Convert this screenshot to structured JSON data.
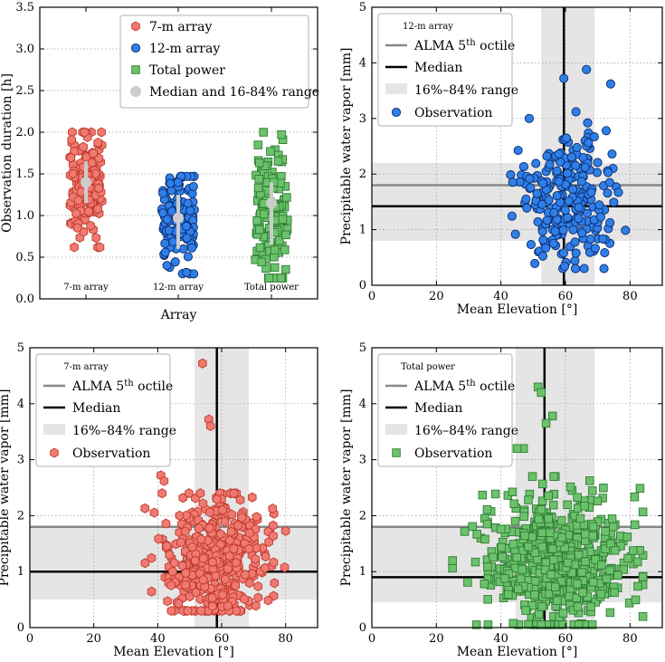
{
  "colors": {
    "red_fill": "#f07a72",
    "red_edge": "#c0392b",
    "blue_fill": "#2f7fe8",
    "blue_edge": "#0b2a6b",
    "green_fill": "#6cc26c",
    "green_edge": "#2e7d32",
    "median_marker": "#cccccc",
    "octile": "#888888",
    "band": "#e5e5e5"
  },
  "chart_data": [
    {
      "id": "panel-a",
      "type": "scatter",
      "xlabel": "Array",
      "ylabel": "Observation duration [h]",
      "ylim": [
        0,
        3.5
      ],
      "yticks": [
        "0.0",
        "0.5",
        "1.0",
        "1.5",
        "2.0",
        "2.5",
        "3.0",
        "3.5"
      ],
      "categories": [
        "7-m array",
        "12-m array",
        "Total power"
      ],
      "legend": [
        "7-m array",
        "12-m array",
        "Total power",
        "Median and 16-84% range"
      ],
      "series": [
        {
          "name": "7-m array",
          "marker": "hexagon",
          "median": 1.4,
          "range": [
            1.15,
            1.65
          ],
          "min": 0.62,
          "max": 2.0,
          "center": 1.35,
          "n": 140
        },
        {
          "name": "12-m array",
          "marker": "circle",
          "median": 0.97,
          "range": [
            0.6,
            1.25
          ],
          "min": 0.3,
          "max": 1.47,
          "center": 0.95,
          "n": 140
        },
        {
          "name": "Total power",
          "marker": "square",
          "median": 1.15,
          "range": [
            0.65,
            1.4
          ],
          "min": 0.25,
          "max": 2.0,
          "center": 1.0,
          "n": 140
        }
      ]
    },
    {
      "id": "panel-b",
      "type": "scatter",
      "title": "12-m array",
      "xlabel": "Mean Elevation [°]",
      "ylabel": "Precipitable water vapor [mm]",
      "xlim": [
        0,
        90
      ],
      "ylim": [
        0,
        5
      ],
      "xticks": [
        "0",
        "20",
        "40",
        "60",
        "80"
      ],
      "yticks": [
        "0",
        "1",
        "2",
        "3",
        "4",
        "5"
      ],
      "legend": [
        "ALMA 5th octile",
        "Median",
        "16%–84% range",
        "Observation"
      ],
      "octile": 1.8,
      "median_x": 59.5,
      "median_y": 1.42,
      "band_x": [
        52.5,
        69
      ],
      "band_y": [
        0.8,
        2.2
      ],
      "marker": "circle",
      "cloud": {
        "xmin": 43,
        "xmax": 81,
        "ymin": 0.3,
        "ymax": 3.9,
        "xmean": 60,
        "ymean": 1.5,
        "n": 230
      },
      "outliers": [
        [
          59.5,
          3.72
        ],
        [
          66.5,
          3.88
        ],
        [
          74,
          3.62
        ]
      ]
    },
    {
      "id": "panel-c",
      "type": "scatter",
      "title": "7-m array",
      "xlabel": "Mean Elevation [°]",
      "ylabel": "Precipitable water vapor [mm]",
      "xlim": [
        0,
        90
      ],
      "ylim": [
        0,
        5
      ],
      "xticks": [
        "0",
        "20",
        "40",
        "60",
        "80"
      ],
      "yticks": [
        "0",
        "1",
        "2",
        "3",
        "4",
        "5"
      ],
      "legend": [
        "ALMA 5th octile",
        "Median",
        "16%–84% range",
        "Observation"
      ],
      "octile": 1.8,
      "median_x": 58.5,
      "median_y": 1.0,
      "band_x": [
        51.5,
        68.5
      ],
      "band_y": [
        0.5,
        1.8
      ],
      "marker": "hexagon",
      "cloud": {
        "xmin": 36,
        "xmax": 80,
        "ymin": 0.3,
        "ymax": 3.0,
        "xmean": 58,
        "ymean": 1.15,
        "n": 420
      },
      "outliers": [
        [
          54,
          4.72
        ],
        [
          56,
          3.72
        ],
        [
          56.5,
          3.6
        ],
        [
          41,
          2.72
        ],
        [
          42,
          2.62
        ]
      ]
    },
    {
      "id": "panel-d",
      "type": "scatter",
      "title": "Total power",
      "xlabel": "Mean Elevation [°]",
      "ylabel": "Precipitable water vapor [mm]",
      "xlim": [
        0,
        90
      ],
      "ylim": [
        0,
        5
      ],
      "xticks": [
        "0",
        "20",
        "40",
        "60",
        "80"
      ],
      "yticks": [
        "0",
        "1",
        "2",
        "3",
        "4",
        "5"
      ],
      "legend": [
        "ALMA 5th octile",
        "Median",
        "16%–84% range",
        "Observation"
      ],
      "octile": 1.8,
      "median_x": 53.5,
      "median_y": 0.9,
      "band_x": [
        44.5,
        69
      ],
      "band_y": [
        0.45,
        1.8
      ],
      "marker": "square",
      "cloud": {
        "xmin": 25,
        "xmax": 84,
        "ymin": 0.05,
        "ymax": 3.3,
        "xmean": 57,
        "ymean": 1.15,
        "n": 600
      },
      "outliers": [
        [
          51.5,
          4.3
        ],
        [
          52.5,
          4.2
        ],
        [
          56,
          3.78
        ],
        [
          54,
          3.65
        ],
        [
          47,
          3.2
        ],
        [
          45,
          3.2
        ]
      ]
    }
  ]
}
